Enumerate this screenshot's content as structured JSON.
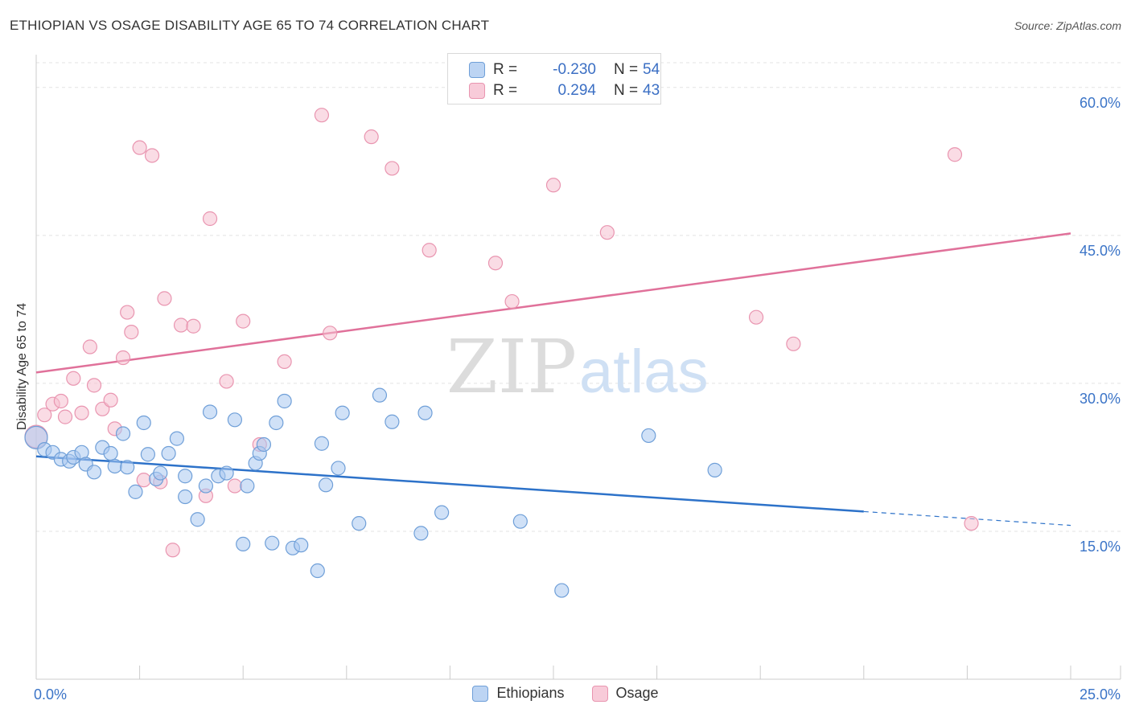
{
  "title": "ETHIOPIAN VS OSAGE DISABILITY AGE 65 TO 74 CORRELATION CHART",
  "source": "Source: ZipAtlas.com",
  "watermark": {
    "zip": "ZIP",
    "atlas": "atlas"
  },
  "stats": [
    {
      "r_label": "R =",
      "r_value": "-0.230",
      "n_label": "N =",
      "n_value": "54"
    },
    {
      "r_label": "R =",
      "r_value": "0.294",
      "n_label": "N =",
      "n_value": "43"
    }
  ],
  "colors": {
    "ethiopians_fill": "#a9c8f0",
    "ethiopians_stroke": "#6f9fd8",
    "ethiopians_line": "#2d72c9",
    "osage_fill": "#f6bfd0",
    "osage_stroke": "#e995b0",
    "osage_line": "#e0719a",
    "tick_label": "#3b74c7",
    "grid": "#e3e3e3"
  },
  "chart_data": {
    "type": "scatter",
    "title": "ETHIOPIAN VS OSAGE DISABILITY AGE 65 TO 74 CORRELATION CHART",
    "xlabel": "",
    "ylabel": "Disability Age 65 to 74",
    "xlim": [
      0,
      25
    ],
    "ylim": [
      0,
      63
    ],
    "x_tick_labels": [
      {
        "value": 0,
        "label": "0.0%"
      },
      {
        "value": 25,
        "label": "25.0%"
      }
    ],
    "y_tick_labels": [
      {
        "value": 15,
        "label": "15.0%"
      },
      {
        "value": 30,
        "label": "30.0%"
      },
      {
        "value": 45,
        "label": "45.0%"
      },
      {
        "value": 60,
        "label": "60.0%"
      }
    ],
    "y_gridlines": [
      15,
      30,
      45,
      60
    ],
    "legend_position": "bottom-center",
    "series": [
      {
        "name": "Ethiopians",
        "points": [
          [
            0.0,
            24.5
          ],
          [
            0.2,
            23.3
          ],
          [
            0.4,
            23.0
          ],
          [
            0.6,
            22.3
          ],
          [
            0.8,
            22.1
          ],
          [
            0.9,
            22.5
          ],
          [
            1.1,
            23.0
          ],
          [
            1.2,
            21.8
          ],
          [
            1.4,
            21.0
          ],
          [
            1.6,
            23.5
          ],
          [
            1.8,
            22.9
          ],
          [
            1.9,
            21.6
          ],
          [
            2.1,
            24.9
          ],
          [
            2.2,
            21.5
          ],
          [
            2.4,
            19.0
          ],
          [
            2.6,
            26.0
          ],
          [
            2.7,
            22.8
          ],
          [
            2.9,
            20.3
          ],
          [
            3.0,
            20.9
          ],
          [
            3.2,
            22.9
          ],
          [
            3.4,
            24.4
          ],
          [
            3.6,
            20.6
          ],
          [
            3.6,
            18.5
          ],
          [
            3.9,
            16.2
          ],
          [
            4.1,
            19.6
          ],
          [
            4.2,
            27.1
          ],
          [
            4.4,
            20.6
          ],
          [
            4.6,
            20.9
          ],
          [
            4.8,
            26.3
          ],
          [
            5.0,
            13.7
          ],
          [
            5.1,
            19.6
          ],
          [
            5.3,
            21.9
          ],
          [
            5.4,
            22.9
          ],
          [
            5.5,
            23.8
          ],
          [
            5.7,
            13.8
          ],
          [
            5.8,
            26.0
          ],
          [
            6.0,
            28.2
          ],
          [
            6.2,
            13.3
          ],
          [
            6.4,
            13.6
          ],
          [
            6.8,
            11.0
          ],
          [
            6.9,
            23.9
          ],
          [
            7.0,
            19.7
          ],
          [
            7.3,
            21.4
          ],
          [
            7.4,
            27.0
          ],
          [
            7.8,
            15.8
          ],
          [
            8.3,
            28.8
          ],
          [
            8.6,
            26.1
          ],
          [
            9.3,
            14.8
          ],
          [
            9.4,
            27.0
          ],
          [
            9.8,
            16.9
          ],
          [
            11.7,
            16.0
          ],
          [
            12.7,
            9.0
          ],
          [
            14.8,
            24.7
          ],
          [
            16.4,
            21.2
          ]
        ],
        "trend": {
          "x": [
            0.0,
            20.0
          ],
          "y": [
            22.6,
            17.0
          ]
        },
        "trend_extension": {
          "x": [
            20.0,
            25.0
          ],
          "y": [
            17.0,
            15.6
          ]
        }
      },
      {
        "name": "Osage",
        "points": [
          [
            0.0,
            24.6
          ],
          [
            0.2,
            26.8
          ],
          [
            0.4,
            27.9
          ],
          [
            0.6,
            28.2
          ],
          [
            0.7,
            26.6
          ],
          [
            0.9,
            30.5
          ],
          [
            1.1,
            27.0
          ],
          [
            1.3,
            33.7
          ],
          [
            1.4,
            29.8
          ],
          [
            1.6,
            27.4
          ],
          [
            1.8,
            28.3
          ],
          [
            1.9,
            25.4
          ],
          [
            2.1,
            32.6
          ],
          [
            2.2,
            37.2
          ],
          [
            2.3,
            35.2
          ],
          [
            2.5,
            53.9
          ],
          [
            2.6,
            20.2
          ],
          [
            2.8,
            53.1
          ],
          [
            3.0,
            20.0
          ],
          [
            3.1,
            38.6
          ],
          [
            3.3,
            13.1
          ],
          [
            3.5,
            35.9
          ],
          [
            3.8,
            35.8
          ],
          [
            4.1,
            18.6
          ],
          [
            4.2,
            46.7
          ],
          [
            4.6,
            30.2
          ],
          [
            4.8,
            19.6
          ],
          [
            5.0,
            36.3
          ],
          [
            5.4,
            23.8
          ],
          [
            6.0,
            32.2
          ],
          [
            6.9,
            57.2
          ],
          [
            7.1,
            35.1
          ],
          [
            8.1,
            55.0
          ],
          [
            8.6,
            51.8
          ],
          [
            9.5,
            43.5
          ],
          [
            11.1,
            42.2
          ],
          [
            11.5,
            38.3
          ],
          [
            12.5,
            50.1
          ],
          [
            13.8,
            45.3
          ],
          [
            17.4,
            36.7
          ],
          [
            18.3,
            34.0
          ],
          [
            22.2,
            53.2
          ],
          [
            22.6,
            15.8
          ]
        ],
        "trend": {
          "x": [
            0.0,
            25.0
          ],
          "y": [
            31.1,
            45.2
          ]
        }
      }
    ]
  }
}
